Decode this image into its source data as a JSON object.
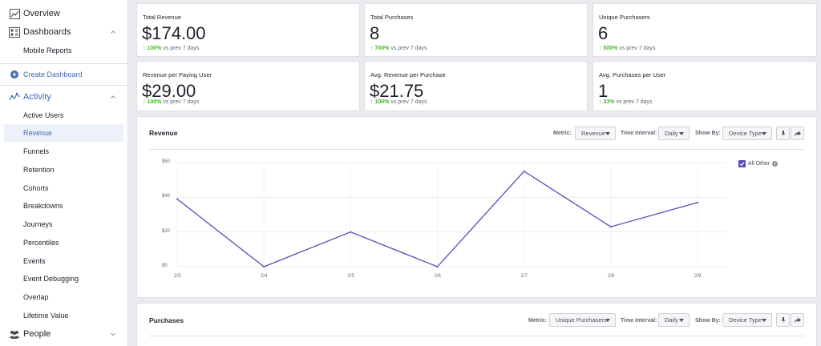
{
  "sidebar": {
    "overview": "Overview",
    "dashboards": "Dashboards",
    "mobile_reports": "Mobile Reports",
    "create_dashboard": "Create Dashboard",
    "activity": "Activity",
    "activity_items": [
      "Active Users",
      "Revenue",
      "Funnels",
      "Retention",
      "Cohorts",
      "Breakdowns",
      "Journeys",
      "Percentiles",
      "Events",
      "Event Debugging",
      "Overlap",
      "Lifetime Value"
    ],
    "people": "People"
  },
  "kpis": [
    {
      "title": "Total Revenue",
      "value": "$174.00",
      "delta": "100%",
      "suffix": "vs prev 7 days"
    },
    {
      "title": "Total Purchases",
      "value": "8",
      "delta": "700%",
      "suffix": "vs prev 7 days"
    },
    {
      "title": "Unique Purchasers",
      "value": "6",
      "delta": "500%",
      "suffix": "vs prev 7 days"
    },
    {
      "title": "Revenue per Paying User",
      "value": "$29.00",
      "delta": "100%",
      "suffix": "vs prev 7 days"
    },
    {
      "title": "Avg. Revenue per Purchase",
      "value": "$21.75",
      "delta": "100%",
      "suffix": "vs prev 7 days"
    },
    {
      "title": "Avg. Purchases per User",
      "value": "1",
      "delta": "33%",
      "suffix": "vs prev 7 days"
    }
  ],
  "revenue_panel": {
    "title": "Revenue",
    "metric_label": "Metric:",
    "metric_value": "Revenue",
    "interval_label": "Time Interval:",
    "interval_value": "Daily",
    "showby_label": "Show By:",
    "showby_value": "Device Type",
    "legend": "All Other"
  },
  "purchases_panel": {
    "title": "Purchases",
    "metric_label": "Metric:",
    "metric_value": "Unique Purchasers",
    "interval_label": "Time Interval:",
    "interval_value": "Daily",
    "showby_label": "Show By:",
    "showby_value": "Device Type"
  },
  "chart_data": {
    "type": "line",
    "title": "Revenue",
    "x": [
      "2/3",
      "2/4",
      "2/5",
      "2/6",
      "2/7",
      "2/8",
      "2/9"
    ],
    "series": [
      {
        "name": "All Other",
        "values": [
          39,
          0,
          20,
          0,
          55,
          23,
          37
        ]
      }
    ],
    "yticks": [
      "$0",
      "$20",
      "$40",
      "$60"
    ],
    "ylim": [
      0,
      60
    ],
    "grid": true,
    "legend_position": "top-right",
    "color": "#5b48b8"
  }
}
